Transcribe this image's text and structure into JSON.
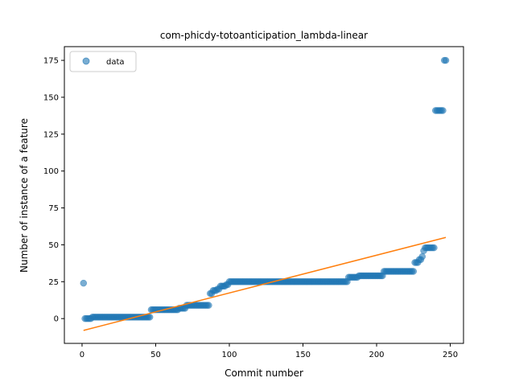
{
  "chart_data": {
    "type": "scatter",
    "title": "com-phicdy-totoanticipation_lambda-linear",
    "xlabel": "Commit number",
    "ylabel": "Number of instance of a feature",
    "xlim": [
      -12,
      259
    ],
    "ylim": [
      -16.8,
      184.3
    ],
    "xticks": [
      0,
      50,
      100,
      150,
      200,
      250
    ],
    "yticks": [
      0,
      25,
      50,
      75,
      100,
      125,
      150,
      175
    ],
    "grid": false,
    "legend": {
      "placement": "top-left",
      "entries": [
        "data"
      ]
    },
    "colors": {
      "data": "#1f77b4",
      "fit": "#ff7f0e"
    },
    "series": [
      {
        "name": "data",
        "kind": "scatter",
        "segments": [
          {
            "x_start": 1,
            "x_end": 1,
            "y": 24
          },
          {
            "x_start": 2,
            "x_end": 6,
            "y": 0
          },
          {
            "x_start": 7,
            "x_end": 46,
            "y": 1
          },
          {
            "x_start": 47,
            "x_end": 65,
            "y": 6
          },
          {
            "x_start": 66,
            "x_end": 70,
            "y": 7
          },
          {
            "x_start": 71,
            "x_end": 86,
            "y": 9
          },
          {
            "x_start": 87,
            "x_end": 88,
            "y": 17
          },
          {
            "x_start": 89,
            "x_end": 91,
            "y": 19
          },
          {
            "x_start": 92,
            "x_end": 93,
            "y": 20
          },
          {
            "x_start": 94,
            "x_end": 97,
            "y": 22
          },
          {
            "x_start": 98,
            "x_end": 99,
            "y": 23
          },
          {
            "x_start": 100,
            "x_end": 180,
            "y": 25
          },
          {
            "x_start": 181,
            "x_end": 187,
            "y": 28
          },
          {
            "x_start": 188,
            "x_end": 204,
            "y": 29
          },
          {
            "x_start": 205,
            "x_end": 225,
            "y": 32
          },
          {
            "x_start": 226,
            "x_end": 228,
            "y": 38
          },
          {
            "x_start": 229,
            "x_end": 230,
            "y": 40
          },
          {
            "x_start": 231,
            "x_end": 231,
            "y": 42
          },
          {
            "x_start": 232,
            "x_end": 232,
            "y": 46
          },
          {
            "x_start": 233,
            "x_end": 239,
            "y": 48
          },
          {
            "x_start": 240,
            "x_end": 245,
            "y": 141
          },
          {
            "x_start": 246,
            "x_end": 247,
            "y": 175
          }
        ]
      },
      {
        "name": "fit",
        "kind": "line",
        "x": [
          1,
          247
        ],
        "y": [
          -8,
          55
        ]
      }
    ]
  }
}
